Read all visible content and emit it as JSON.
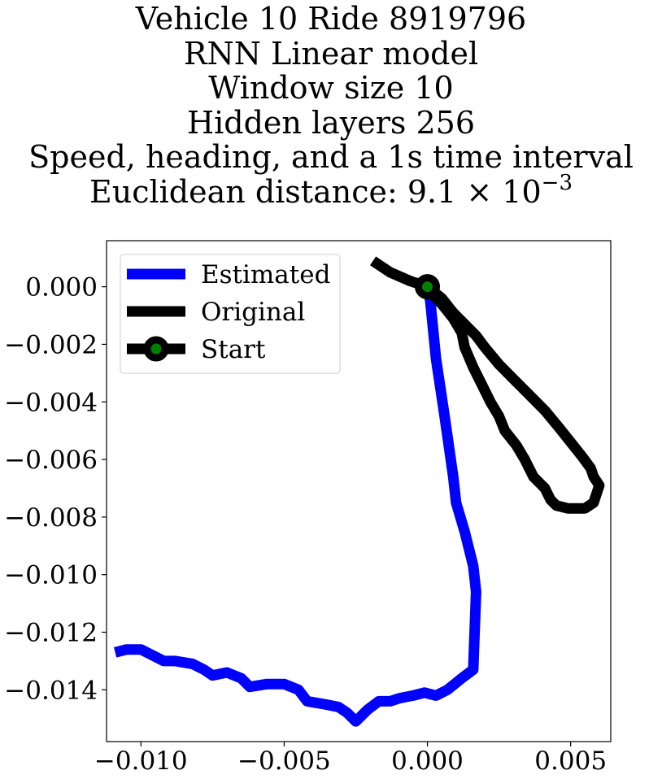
{
  "chart_data": {
    "type": "line",
    "title_lines": [
      "Vehicle 10 Ride 8919796",
      "RNN Linear model",
      "Window size 10",
      "Hidden layers 256",
      "Speed, heading, and a 1s time interval"
    ],
    "distance_label": "Euclidean distance: ",
    "distance_mantissa": "9.1",
    "distance_exponent": "−3",
    "xlabel": "",
    "ylabel": "",
    "xlim": [
      -0.0112,
      0.0064
    ],
    "ylim": [
      -0.0158,
      0.0016
    ],
    "xticks": [
      -0.01,
      -0.005,
      0.0,
      0.005
    ],
    "xtick_labels": [
      "−0.010",
      "−0.005",
      "0.000",
      "0.005"
    ],
    "yticks": [
      0.0,
      -0.002,
      -0.004,
      -0.006,
      -0.008,
      -0.01,
      -0.012,
      -0.014
    ],
    "ytick_labels": [
      "0.000",
      "−0.002",
      "−0.004",
      "−0.006",
      "−0.008",
      "−0.010",
      "−0.012",
      "−0.014"
    ],
    "grid": false,
    "legend_position": "top-left",
    "series": [
      {
        "name": "Estimated",
        "color": "#0000ff",
        "points": [
          [
            0.0,
            0.0
          ],
          [
            0.0001,
            -0.0005
          ],
          [
            0.0003,
            -0.0025
          ],
          [
            0.0006,
            -0.0045
          ],
          [
            0.0009,
            -0.0066
          ],
          [
            0.001,
            -0.0075
          ],
          [
            0.0013,
            -0.0085
          ],
          [
            0.0016,
            -0.0097
          ],
          [
            0.0017,
            -0.0106
          ],
          [
            0.0016,
            -0.0133
          ],
          [
            0.0012,
            -0.0136
          ],
          [
            0.0007,
            -0.014
          ],
          [
            0.0003,
            -0.0142
          ],
          [
            -0.0001,
            -0.0141
          ],
          [
            -0.0005,
            -0.0142
          ],
          [
            -0.001,
            -0.0143
          ],
          [
            -0.0013,
            -0.0144
          ],
          [
            -0.0017,
            -0.0144
          ],
          [
            -0.0021,
            -0.0147
          ],
          [
            -0.0025,
            -0.0151
          ],
          [
            -0.0028,
            -0.0148
          ],
          [
            -0.0031,
            -0.0146
          ],
          [
            -0.0036,
            -0.0145
          ],
          [
            -0.0042,
            -0.0144
          ],
          [
            -0.0045,
            -0.014
          ],
          [
            -0.005,
            -0.0138
          ],
          [
            -0.0056,
            -0.0138
          ],
          [
            -0.0062,
            -0.0139
          ],
          [
            -0.0065,
            -0.0136
          ],
          [
            -0.007,
            -0.0134
          ],
          [
            -0.0075,
            -0.0135
          ],
          [
            -0.0078,
            -0.0133
          ],
          [
            -0.0082,
            -0.0131
          ],
          [
            -0.0088,
            -0.013
          ],
          [
            -0.0092,
            -0.013
          ],
          [
            -0.0096,
            -0.0128
          ],
          [
            -0.01,
            -0.0126
          ],
          [
            -0.0105,
            -0.0126
          ],
          [
            -0.0109,
            -0.0127
          ]
        ]
      },
      {
        "name": "Original",
        "color": "#000000",
        "points": [
          [
            -0.0019,
            0.0009
          ],
          [
            -0.0013,
            0.0005
          ],
          [
            -0.0006,
            0.0002
          ],
          [
            0.0,
            0.0
          ],
          [
            0.0005,
            -0.0004
          ],
          [
            0.0009,
            -0.0009
          ],
          [
            0.0012,
            -0.0012
          ],
          [
            0.0017,
            -0.0017
          ],
          [
            0.002,
            -0.0021
          ],
          [
            0.0025,
            -0.0027
          ],
          [
            0.003,
            -0.0032
          ],
          [
            0.0036,
            -0.0038
          ],
          [
            0.0041,
            -0.0043
          ],
          [
            0.0046,
            -0.0049
          ],
          [
            0.005,
            -0.0054
          ],
          [
            0.0054,
            -0.0059
          ],
          [
            0.0057,
            -0.0063
          ],
          [
            0.0058,
            -0.0066
          ],
          [
            0.006,
            -0.0069
          ],
          [
            0.0059,
            -0.0072
          ],
          [
            0.0058,
            -0.0075
          ],
          [
            0.0055,
            -0.0077
          ],
          [
            0.0049,
            -0.0077
          ],
          [
            0.0045,
            -0.0076
          ],
          [
            0.0043,
            -0.0074
          ],
          [
            0.0041,
            -0.007
          ],
          [
            0.0037,
            -0.0066
          ],
          [
            0.0034,
            -0.006
          ],
          [
            0.0031,
            -0.0055
          ],
          [
            0.0027,
            -0.005
          ],
          [
            0.0025,
            -0.0045
          ],
          [
            0.0022,
            -0.004
          ],
          [
            0.0019,
            -0.0034
          ],
          [
            0.0016,
            -0.0028
          ],
          [
            0.0013,
            -0.0021
          ],
          [
            0.0012,
            -0.0016
          ],
          [
            0.0009,
            -0.0011
          ],
          [
            0.0005,
            -0.0006
          ],
          [
            0.0001,
            -0.0002
          ],
          [
            0.0,
            0.0
          ]
        ]
      }
    ],
    "start_marker": {
      "name": "Start",
      "x": 0.0,
      "y": 0.0,
      "fill": "#008000",
      "edge": "#000000"
    }
  }
}
